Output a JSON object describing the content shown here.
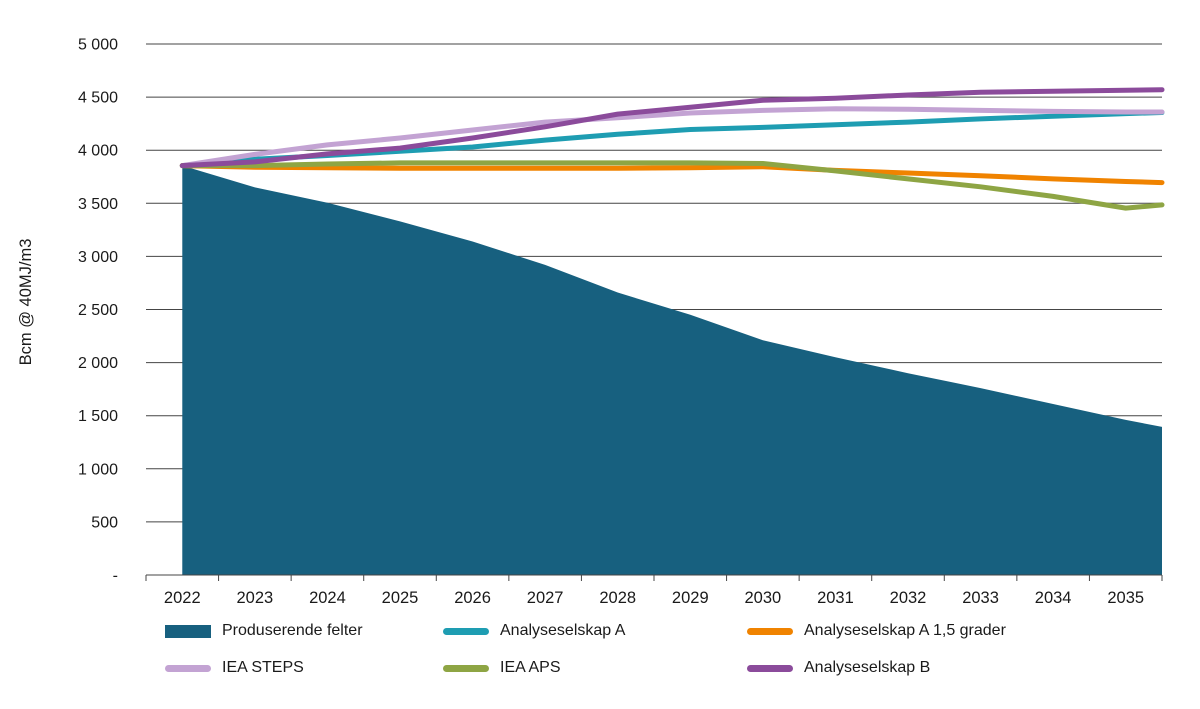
{
  "chart_data": {
    "type": "area+line",
    "title": "",
    "ylabel": "Bcm @ 40MJ/m3",
    "xlabel": "",
    "ylim": [
      0,
      5000
    ],
    "y_tick_step": 500,
    "grid": true,
    "legend_position": "bottom",
    "y_tick_labels": [
      "-",
      "500",
      "1 000",
      "1 500",
      "2 000",
      "2 500",
      "3 000",
      "3 500",
      "4 000",
      "4 500",
      "5 000"
    ],
    "categories": [
      "2022",
      "2023",
      "2024",
      "2025",
      "2026",
      "2027",
      "2028",
      "2029",
      "2030",
      "2031",
      "2032",
      "2033",
      "2034",
      "2035"
    ],
    "series": [
      {
        "name": "Produserende felter",
        "type": "area",
        "color": "#17607F",
        "values": [
          3855,
          3650,
          3505,
          3330,
          3140,
          2920,
          2660,
          2450,
          2210,
          2050,
          1900,
          1760,
          1610,
          1460
        ],
        "edge_value": 1395
      },
      {
        "name": "Analyseselskap A",
        "type": "line",
        "color": "#1E9DB2",
        "values": [
          3855,
          3915,
          3950,
          3990,
          4030,
          4095,
          4150,
          4195,
          4215,
          4240,
          4265,
          4295,
          4320,
          4345
        ],
        "edge_value": 4355
      },
      {
        "name": "Analyseselskap A 1,5 grader",
        "type": "line",
        "color": "#F08300",
        "values": [
          3855,
          3840,
          3835,
          3830,
          3830,
          3830,
          3830,
          3835,
          3845,
          3810,
          3785,
          3760,
          3730,
          3705
        ],
        "edge_value": 3695
      },
      {
        "name": "IEA STEPS",
        "type": "line",
        "color": "#C3A3D3",
        "values": [
          3855,
          3960,
          4050,
          4115,
          4190,
          4265,
          4305,
          4350,
          4375,
          4390,
          4385,
          4375,
          4365,
          4360
        ],
        "edge_value": 4360
      },
      {
        "name": "IEA APS",
        "type": "line",
        "color": "#8EA544",
        "values": [
          3855,
          3855,
          3870,
          3880,
          3880,
          3880,
          3880,
          3880,
          3875,
          3805,
          3730,
          3655,
          3565,
          3455
        ],
        "edge_value": 3485
      },
      {
        "name": "Analyseselskap B",
        "type": "line",
        "color": "#8B4B9B",
        "values": [
          3855,
          3890,
          3965,
          4020,
          4115,
          4220,
          4340,
          4405,
          4470,
          4490,
          4520,
          4545,
          4555,
          4565
        ],
        "edge_value": 4570
      }
    ],
    "style": {
      "grid_color": "#454545",
      "axis_color": "#454545",
      "text_color": "#1a1a1a",
      "line_width": 5
    }
  }
}
